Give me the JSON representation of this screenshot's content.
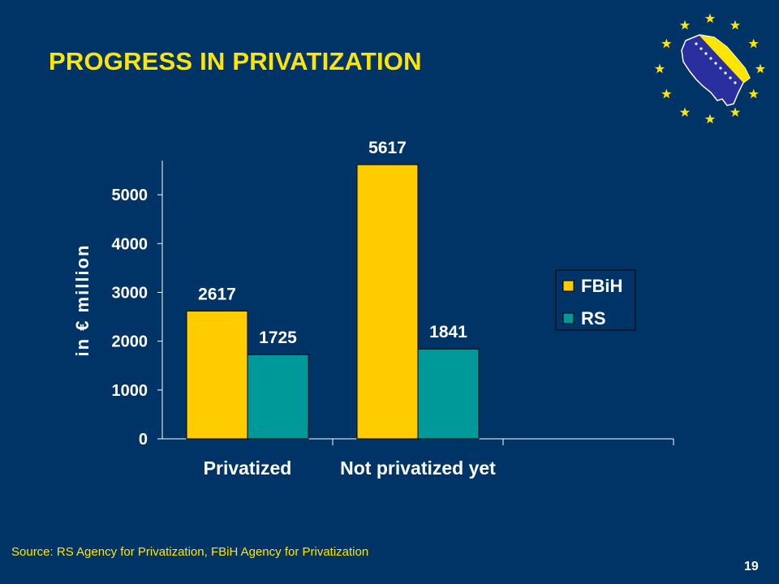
{
  "slide": {
    "title": "PROGRESS IN PRIVATIZATION",
    "source": "Source: RS Agency for Privatization, FBiH Agency for Privatization",
    "page_number": "19",
    "logo": "bosnia-map-with-eu-stars"
  },
  "colors": {
    "background": "#003366",
    "title": "#FFE600",
    "fbih": "#FFCC00",
    "rs": "#009999",
    "text": "#FFFFFF"
  },
  "chart_data": {
    "type": "bar",
    "categories": [
      "Privatized",
      "Not privatized yet"
    ],
    "series": [
      {
        "name": "FBiH",
        "values": [
          2617,
          5617
        ],
        "color": "#FFCC00"
      },
      {
        "name": "RS",
        "values": [
          1725,
          1841
        ],
        "color": "#009999"
      }
    ],
    "ylabel": "in € million",
    "ylim": [
      0,
      5700
    ],
    "yticks": [
      0,
      1000,
      2000,
      3000,
      4000,
      5000
    ],
    "grid": false,
    "legend": "right"
  }
}
